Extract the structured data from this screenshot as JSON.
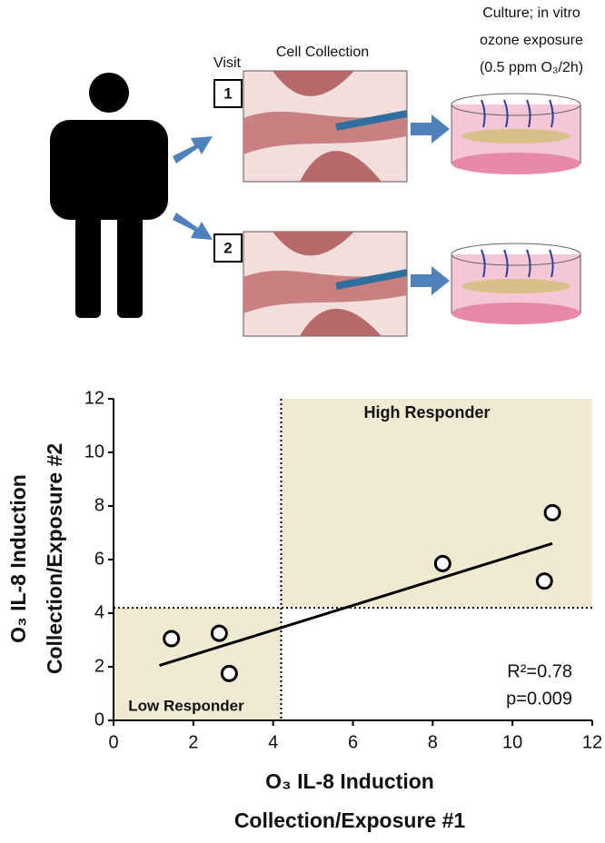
{
  "diagram": {
    "visit": "Visit",
    "visit_numbers": [
      "1",
      "2"
    ],
    "cell_collection": "Cell Collection",
    "culture": [
      "Culture; in vitro",
      "ozone exposure",
      "(0.5 ppm O₃/2h)"
    ]
  },
  "chart_data": {
    "type": "scatter",
    "x_label": [
      "O₃ IL-8 Induction",
      "Collection/Exposure #1"
    ],
    "y_label": [
      "O₃ IL-8 Induction",
      "Collection/Exposure #2"
    ],
    "x": [
      1.45,
      2.65,
      2.9,
      8.25,
      10.8,
      11.0
    ],
    "values": [
      3.05,
      3.25,
      1.75,
      5.85,
      5.2,
      7.75
    ],
    "color": "#000000",
    "xlim": [
      0,
      12
    ],
    "ylim": [
      0,
      12
    ],
    "xticks": [
      0,
      2,
      4,
      6,
      8,
      10,
      12
    ],
    "yticks": [
      0,
      2,
      4,
      6,
      8,
      10,
      12
    ],
    "fit": {
      "x": [
        1.15,
        11.0
      ],
      "y": [
        2.05,
        6.6
      ]
    },
    "thresholds": {
      "x": 4.2,
      "y": 4.2
    },
    "region_color": "#f1ead3",
    "annotations": {
      "high": "High  Responder",
      "low": "Low  Responder",
      "r2": "R²=0.78",
      "p": "p=0.009"
    }
  }
}
